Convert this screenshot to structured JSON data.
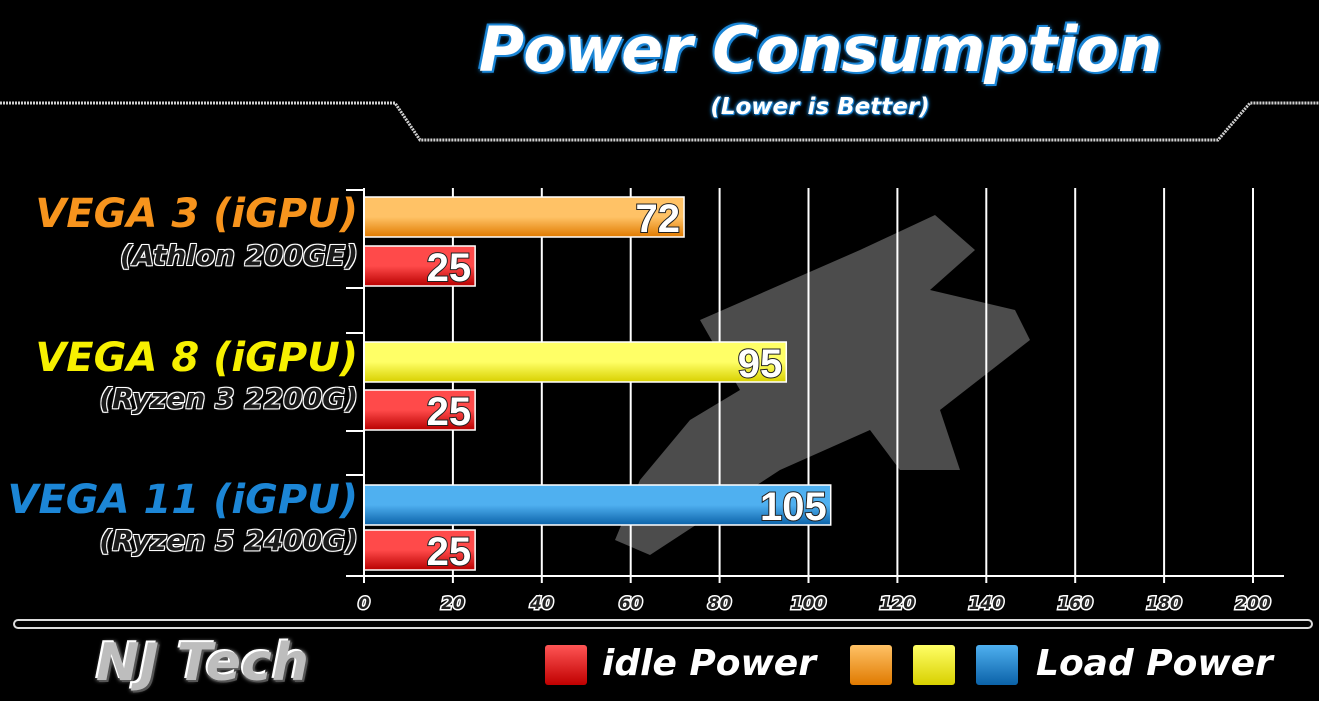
{
  "title": "Power Consumption",
  "subtitle": "(Lower is Better)",
  "brand": "NJ Tech",
  "legend": {
    "idle_label": "idle Power",
    "load_label": "Load Power"
  },
  "colors": {
    "idle": "#e01010",
    "vega3": "#f7941d",
    "vega8": "#f7f000",
    "vega11": "#1c86d6"
  },
  "categories": [
    {
      "name": "VEGA 3 (iGPU)",
      "sub": "(Athlon 200GE)",
      "color": "#f7941d"
    },
    {
      "name": "VEGA 8 (iGPU)",
      "sub": "(Ryzen 3 2200G)",
      "color": "#f7f000"
    },
    {
      "name": "VEGA 11 (iGPU)",
      "sub": "(Ryzen 5 2400G)",
      "color": "#1c86d6"
    }
  ],
  "chart_data": {
    "type": "bar",
    "orientation": "horizontal",
    "title": "Power Consumption",
    "subtitle": "(Lower is Better)",
    "categories": [
      "VEGA 3 (iGPU) (Athlon 200GE)",
      "VEGA 8 (iGPU) (Ryzen 3 2200G)",
      "VEGA 11 (iGPU) (Ryzen 5 2400G)"
    ],
    "series": [
      {
        "name": "Load Power",
        "values": [
          72,
          95,
          105
        ]
      },
      {
        "name": "idle Power",
        "values": [
          25,
          25,
          25
        ]
      }
    ],
    "xlim": [
      0,
      200
    ],
    "xticks": [
      0,
      20,
      40,
      60,
      80,
      100,
      120,
      140,
      160,
      180,
      200
    ],
    "grid": true,
    "legend_position": "bottom"
  }
}
